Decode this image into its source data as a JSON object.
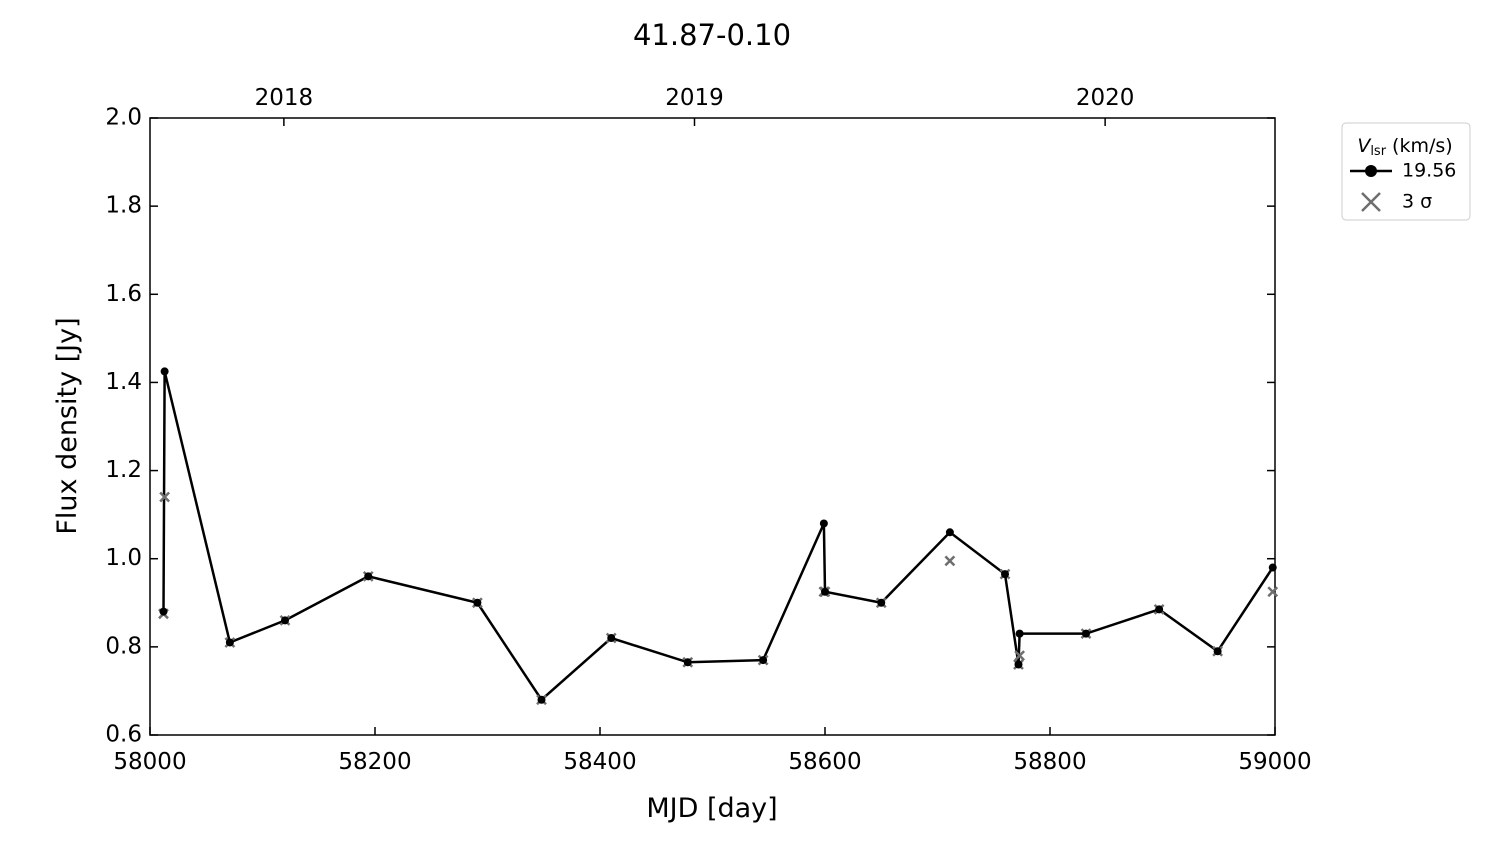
{
  "chart_data": {
    "type": "line",
    "title": "41.87-0.10",
    "xlabel": "MJD [day]",
    "ylabel": "Flux density [Jy]",
    "x": [
      58012,
      58013,
      58071,
      58120,
      58194,
      58291,
      58348,
      58410,
      58478,
      58545,
      58599,
      58600,
      58650,
      58711,
      58760,
      58772,
      58773,
      58832,
      58897,
      58949,
      58998
    ],
    "series": [
      {
        "name": "19.56",
        "color": "#000000",
        "marker": "o",
        "line": true,
        "values": [
          0.88,
          1.425,
          0.81,
          0.86,
          0.96,
          0.9,
          0.68,
          0.82,
          0.765,
          0.77,
          1.08,
          0.925,
          0.9,
          1.06,
          0.965,
          0.76,
          0.83,
          0.83,
          0.885,
          0.79,
          0.98
        ]
      },
      {
        "name": "3 σ",
        "color": "#6e6e6e",
        "marker": "x",
        "line": false,
        "values": [
          0.875,
          1.14,
          0.81,
          0.86,
          0.96,
          0.9,
          0.68,
          0.82,
          0.765,
          0.77,
          0.925,
          0.925,
          0.9,
          0.995,
          0.965,
          0.76,
          0.78,
          0.83,
          0.885,
          0.79,
          0.925
        ]
      }
    ],
    "legend_title": {
      "symbol": "V",
      "subscript": "lsr",
      "unit": "(km/s)"
    },
    "legend": "outside upper right",
    "xlim": [
      58000,
      59000
    ],
    "xticks": [
      58000,
      58200,
      58400,
      58600,
      58800,
      59000
    ],
    "x2ticks": [
      {
        "value": 58119,
        "label": "2018"
      },
      {
        "value": 58484,
        "label": "2019"
      },
      {
        "value": 58849,
        "label": "2020"
      }
    ],
    "ylim": [
      0.6,
      2.0
    ],
    "yticks": [
      {
        "value": 0.6,
        "label": "0.6"
      },
      {
        "value": 0.8,
        "label": "0.8"
      },
      {
        "value": 1.0,
        "label": "1.0"
      },
      {
        "value": 1.2,
        "label": "1.2"
      },
      {
        "value": 1.4,
        "label": "1.4"
      },
      {
        "value": 1.6,
        "label": "1.6"
      },
      {
        "value": 1.8,
        "label": "1.8"
      },
      {
        "value": 2.0,
        "label": "2.0"
      }
    ]
  }
}
